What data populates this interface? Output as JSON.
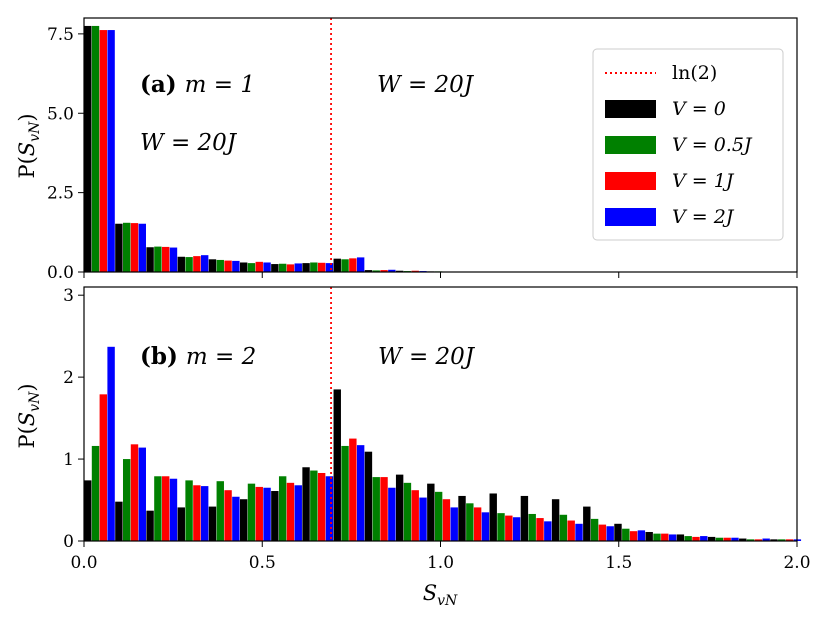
{
  "chart_data": [
    {
      "panel": "a",
      "type": "bar",
      "xlim": [
        0.0,
        2.0
      ],
      "ylim": [
        0.0,
        8.0
      ],
      "yticks": [
        0.0,
        2.5,
        5.0,
        7.5
      ],
      "ytick_labels": [
        "0.0",
        "2.5",
        "5.0",
        "7.5"
      ],
      "ylabel": "P(S_vN)",
      "grid": false,
      "legend_position": "top-right",
      "bin_starts": [
        0.0,
        0.0875,
        0.175,
        0.2625,
        0.35,
        0.4375,
        0.525,
        0.6125,
        0.7,
        0.7875,
        0.875,
        0.9625
      ],
      "bin_width": 0.0875,
      "series": [
        {
          "name": "V = 0",
          "color": "#000000",
          "values": [
            7.75,
            1.52,
            0.78,
            0.48,
            0.4,
            0.3,
            0.25,
            0.28,
            0.42,
            0.06,
            0.04,
            0.02
          ]
        },
        {
          "name": "V = 0.5J",
          "color": "#008000",
          "values": [
            7.75,
            1.55,
            0.8,
            0.47,
            0.38,
            0.28,
            0.26,
            0.3,
            0.4,
            0.05,
            0.03,
            0.02
          ]
        },
        {
          "name": "V = 1J",
          "color": "#ff0000",
          "values": [
            7.62,
            1.54,
            0.79,
            0.5,
            0.36,
            0.32,
            0.24,
            0.29,
            0.43,
            0.06,
            0.04,
            0.01
          ]
        },
        {
          "name": "V = 2J",
          "color": "#0000ff",
          "values": [
            7.62,
            1.52,
            0.77,
            0.53,
            0.35,
            0.3,
            0.27,
            0.28,
            0.46,
            0.07,
            0.03,
            0.01
          ]
        }
      ],
      "vline": {
        "x": 0.693,
        "color": "#ff0000",
        "style": "dotted",
        "name": "ln(2)"
      },
      "annotations": [
        {
          "bold": "(a)",
          "text": "m = 1"
        },
        {
          "text": "W = 20J"
        },
        {
          "text": "W = 20J"
        }
      ],
      "legend": [
        {
          "label": "ln(2)",
          "kind": "line",
          "color": "#ff0000"
        },
        {
          "label": "V = 0",
          "kind": "patch",
          "color": "#000000"
        },
        {
          "label": "V = 0.5J",
          "kind": "patch",
          "color": "#008000"
        },
        {
          "label": "V = 1J",
          "kind": "patch",
          "color": "#ff0000"
        },
        {
          "label": "V = 2J",
          "kind": "patch",
          "color": "#0000ff"
        }
      ]
    },
    {
      "panel": "b",
      "type": "bar",
      "xlim": [
        0.0,
        2.0
      ],
      "ylim": [
        0.0,
        3.1
      ],
      "yticks": [
        0,
        1,
        2,
        3
      ],
      "ytick_labels": [
        "0",
        "1",
        "2",
        "3"
      ],
      "xticks": [
        0.0,
        0.5,
        1.0,
        1.5,
        2.0
      ],
      "xtick_labels": [
        "0.0",
        "0.5",
        "1.0",
        "1.5",
        "2.0"
      ],
      "xlabel": "S_vN",
      "ylabel": "P(S_vN)",
      "grid": false,
      "bin_starts": [
        0.0,
        0.0875,
        0.175,
        0.2625,
        0.35,
        0.4375,
        0.525,
        0.6125,
        0.7,
        0.7875,
        0.875,
        0.9625,
        1.05,
        1.1375,
        1.225,
        1.3125,
        1.4,
        1.4875,
        1.575,
        1.6625,
        1.75,
        1.8375,
        1.925
      ],
      "bin_width": 0.0875,
      "series": [
        {
          "name": "V = 0",
          "color": "#000000",
          "values": [
            0.74,
            0.48,
            0.37,
            0.41,
            0.42,
            0.51,
            0.61,
            0.9,
            1.85,
            1.09,
            0.81,
            0.7,
            0.55,
            0.58,
            0.55,
            0.51,
            0.42,
            0.21,
            0.11,
            0.08,
            0.05,
            0.03,
            0.02
          ]
        },
        {
          "name": "V = 0.5J",
          "color": "#008000",
          "values": [
            1.16,
            1.0,
            0.79,
            0.74,
            0.73,
            0.7,
            0.79,
            0.86,
            1.16,
            0.78,
            0.71,
            0.6,
            0.46,
            0.34,
            0.33,
            0.32,
            0.27,
            0.15,
            0.09,
            0.06,
            0.04,
            0.02,
            0.02
          ]
        },
        {
          "name": "V = 1J",
          "color": "#ff0000",
          "values": [
            1.79,
            1.18,
            0.79,
            0.68,
            0.62,
            0.66,
            0.71,
            0.83,
            1.25,
            0.78,
            0.62,
            0.51,
            0.41,
            0.31,
            0.28,
            0.25,
            0.2,
            0.12,
            0.09,
            0.05,
            0.04,
            0.02,
            0.02
          ]
        },
        {
          "name": "V = 2J",
          "color": "#0000ff",
          "values": [
            2.37,
            1.14,
            0.76,
            0.67,
            0.54,
            0.65,
            0.68,
            0.79,
            1.17,
            0.65,
            0.53,
            0.41,
            0.35,
            0.29,
            0.24,
            0.21,
            0.18,
            0.13,
            0.08,
            0.06,
            0.04,
            0.03,
            0.02
          ]
        }
      ],
      "vline": {
        "x": 0.693,
        "color": "#ff0000",
        "style": "dotted",
        "name": "ln(2)"
      },
      "annotations": [
        {
          "bold": "(b)",
          "text": "m = 2"
        },
        {
          "text": "W = 20J"
        }
      ]
    }
  ]
}
